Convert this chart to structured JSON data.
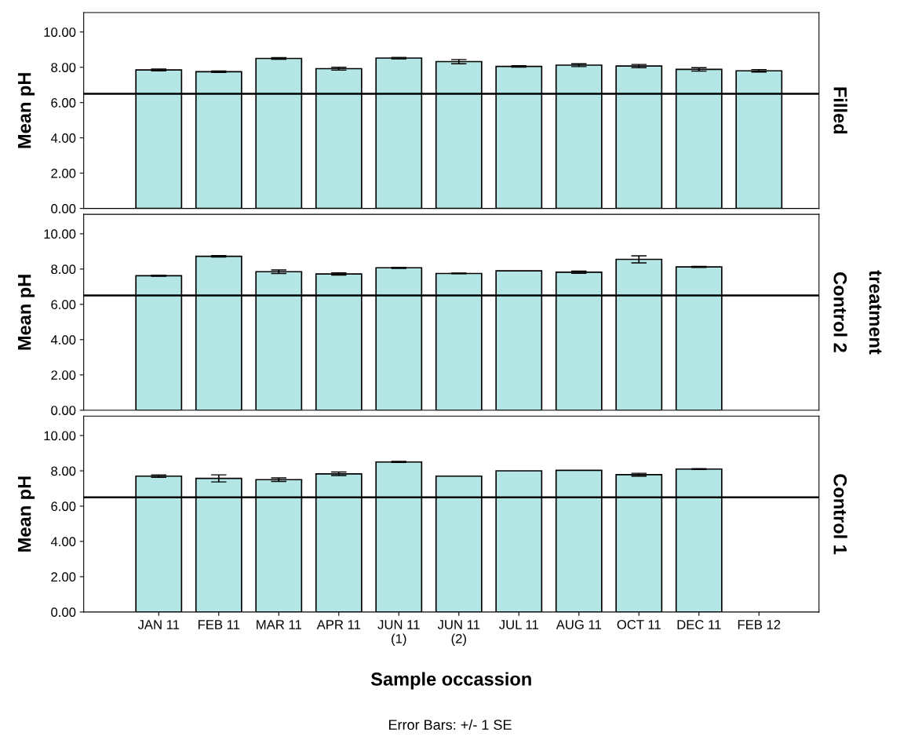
{
  "chart_data": [
    {
      "type": "bar",
      "ylabel": "Mean pH",
      "y2label": "Filled",
      "categories": [
        null,
        null,
        null,
        null,
        null,
        null,
        null,
        null,
        null,
        null,
        null
      ],
      "values": [
        7.85,
        7.75,
        8.5,
        7.92,
        8.52,
        8.32,
        8.05,
        8.12,
        8.07,
        7.88,
        7.8
      ],
      "errors": [
        0.05,
        0.04,
        0.05,
        0.08,
        0.04,
        0.12,
        0.04,
        0.08,
        0.09,
        0.1,
        0.07
      ],
      "color": "#b5e6e6",
      "ylim": [
        0,
        11.1
      ],
      "yticks": [
        {
          "value": 0,
          "label": "0.00"
        },
        {
          "value": 2,
          "label": "2.00"
        },
        {
          "value": 4,
          "label": "4.00"
        },
        {
          "value": 6,
          "label": "6.00"
        },
        {
          "value": 8,
          "label": "8.00"
        },
        {
          "value": 10,
          "label": "10.00"
        }
      ],
      "ref_lines": [
        {
          "axis": "y",
          "value": 6.5
        }
      ],
      "tick_labels": "y"
    },
    {
      "type": "bar",
      "ylabel": "Mean pH",
      "y2label": "Control 2",
      "annotations": [
        "treatment"
      ],
      "categories": [
        null,
        null,
        null,
        null,
        null,
        null,
        null,
        null,
        null,
        null,
        null
      ],
      "values": [
        7.62,
        8.72,
        7.85,
        7.72,
        8.07,
        7.75,
        7.9,
        7.82,
        8.55,
        8.12,
        null
      ],
      "errors": [
        0.03,
        0.04,
        0.1,
        0.06,
        0.03,
        0.02,
        null,
        0.06,
        0.2,
        0.03,
        null
      ],
      "color": "#b5e6e6",
      "ylim": [
        0,
        11.1
      ],
      "yticks": [
        {
          "value": 0,
          "label": "0.00"
        },
        {
          "value": 2,
          "label": "2.00"
        },
        {
          "value": 4,
          "label": "4.00"
        },
        {
          "value": 6,
          "label": "6.00"
        },
        {
          "value": 8,
          "label": "8.00"
        },
        {
          "value": 10,
          "label": "10.00"
        }
      ],
      "ref_lines": [
        {
          "axis": "y",
          "value": 6.5
        }
      ],
      "tick_labels": "y"
    },
    {
      "type": "bar",
      "ylabel": "Mean pH",
      "y2label": "Control 1",
      "xlabel": "Sample occassion",
      "annotations": [
        "Error Bars: +/- 1 SE"
      ],
      "categories": [
        "JAN 11",
        "FEB 11",
        "MAR 11",
        "APR 11",
        "JUN 11\n(1)",
        "JUN 11\n(2)",
        "JUL 11",
        "AUG 11",
        "OCT 11",
        "DEC 11",
        "FEB 12"
      ],
      "values": [
        7.7,
        7.57,
        7.5,
        7.83,
        8.5,
        7.7,
        8.0,
        8.03,
        7.78,
        8.1,
        null
      ],
      "errors": [
        0.07,
        0.2,
        0.1,
        0.1,
        0.03,
        null,
        null,
        null,
        0.08,
        0.02,
        null
      ],
      "color": "#b5e6e6",
      "ylim": [
        0,
        11.1
      ],
      "yticks": [
        {
          "value": 0,
          "label": "0.00"
        },
        {
          "value": 2,
          "label": "2.00"
        },
        {
          "value": 4,
          "label": "4.00"
        },
        {
          "value": 6,
          "label": "6.00"
        },
        {
          "value": 8,
          "label": "8.00"
        },
        {
          "value": 10,
          "label": "10.00"
        }
      ],
      "ref_lines": [
        {
          "axis": "y",
          "value": 6.5
        }
      ]
    }
  ]
}
